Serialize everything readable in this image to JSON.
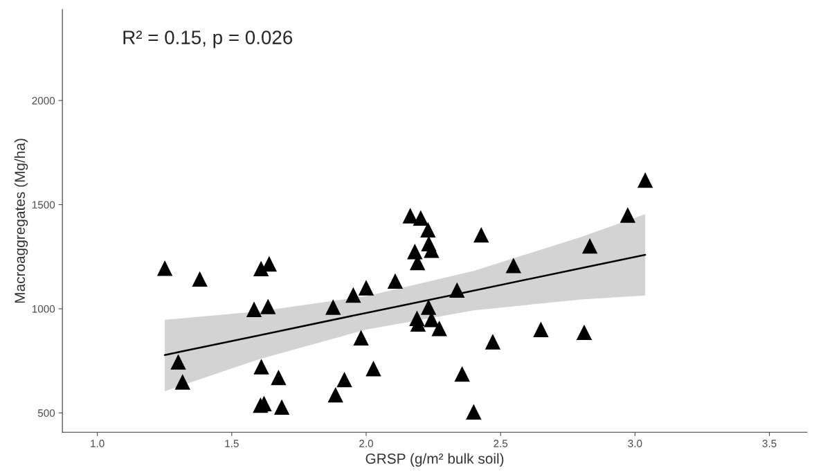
{
  "chart_data": {
    "type": "scatter",
    "xlabel": "GRSP (g/m² bulk soil)",
    "ylabel": "Macroaggregates (Mg/ha)",
    "annotations": [
      "R² = 0.15, p = 0.026"
    ],
    "xlim": [
      0.87,
      3.64
    ],
    "ylim": [
      407,
      2437
    ],
    "xticks": [
      {
        "value": 1,
        "label": "1.0"
      },
      1.5,
      {
        "value": 2,
        "label": "2.0"
      },
      2.5,
      {
        "value": 3,
        "label": "3.0"
      },
      3.5
    ],
    "yticks": [
      500,
      1000,
      1500,
      2000
    ],
    "grid": false,
    "legend": false,
    "series": [
      {
        "marker": "triangle",
        "color": "#000000",
        "x": [
          1.251,
          1.381,
          1.609,
          1.639,
          1.583,
          1.635,
          1.877,
          1.952,
          2.0,
          1.981,
          1.301,
          1.317,
          1.61,
          1.674,
          1.919,
          1.886,
          2.027,
          1.607,
          1.62,
          1.686,
          2.164,
          2.203,
          2.23,
          2.233,
          2.243,
          2.181,
          2.191,
          2.428,
          2.108,
          2.548,
          2.338,
          2.232,
          2.189,
          2.193,
          2.243,
          2.272,
          2.65,
          2.471,
          2.357,
          2.4,
          3.038,
          2.973,
          2.832,
          2.811
        ],
        "values": [
          1195,
          1143,
          1193,
          1216,
          997,
          1011,
          1008,
          1066,
          1101,
          861,
          745,
          649,
          722,
          670,
          660,
          587,
          713,
          537,
          545,
          528,
          1447,
          1436,
          1379,
          1313,
          1281,
          1275,
          1222,
          1355,
          1133,
          1208,
          1090,
          1008,
          954,
          927,
          949,
          906,
          901,
          842,
          687,
          505,
          1618,
          1450,
          1302,
          887
        ]
      },
      {
        "type": "line",
        "marker": "none",
        "color": "#000000",
        "x": [
          1.251,
          1.6,
          2.0,
          2.4,
          2.8,
          3.038
        ],
        "values": [
          778,
          872,
          980,
          1087,
          1195,
          1259
        ],
        "lower": [
          604,
          757,
          900,
          992,
          1045,
          1064
        ],
        "upper": [
          947,
          987,
          1060,
          1182,
          1345,
          1454
        ]
      }
    ]
  }
}
